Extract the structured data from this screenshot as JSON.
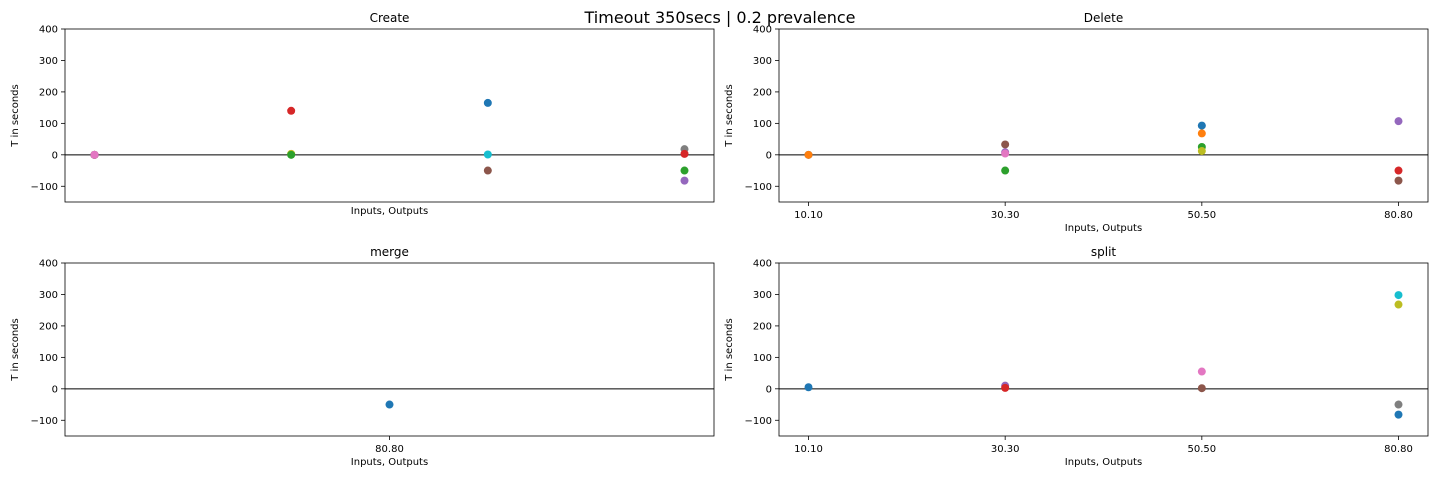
{
  "suptitle": "Timeout 350secs | 0.2 prevalence",
  "chart_data": [
    {
      "id": "create",
      "type": "scatter",
      "title": "Create",
      "xlabel": "Inputs, Outputs",
      "ylabel": "T in seconds",
      "ylim": [
        -150,
        400
      ],
      "yticks": [
        -100,
        0,
        100,
        200,
        300,
        400
      ],
      "xlim": [
        -0.15,
        3.15
      ],
      "xticks": [],
      "hline": 0,
      "points": [
        {
          "x": 0,
          "y": 0,
          "color": "#1f77b4"
        },
        {
          "x": 0,
          "y": 0,
          "color": "#ff7f0e"
        },
        {
          "x": 0,
          "y": 0,
          "color": "#2ca02c"
        },
        {
          "x": 0,
          "y": 0,
          "color": "#d62728"
        },
        {
          "x": 0,
          "y": 0,
          "color": "#9467bd"
        },
        {
          "x": 0,
          "y": 0,
          "color": "#e377c2"
        },
        {
          "x": 1,
          "y": 140,
          "color": "#d62728"
        },
        {
          "x": 1,
          "y": 3,
          "color": "#bcbd22"
        },
        {
          "x": 1,
          "y": 0,
          "color": "#2ca02c"
        },
        {
          "x": 2,
          "y": 165,
          "color": "#1f77b4"
        },
        {
          "x": 2,
          "y": 1,
          "color": "#17becf"
        },
        {
          "x": 2,
          "y": -50,
          "color": "#8c564b"
        },
        {
          "x": 3,
          "y": 18,
          "color": "#7f7f7f"
        },
        {
          "x": 3,
          "y": 3,
          "color": "#d62728"
        },
        {
          "x": 3,
          "y": -50,
          "color": "#2ca02c"
        },
        {
          "x": 3,
          "y": -82,
          "color": "#9467bd"
        }
      ]
    },
    {
      "id": "delete",
      "type": "scatter",
      "title": "Delete",
      "xlabel": "Inputs, Outputs",
      "ylabel": "T in seconds",
      "ylim": [
        -150,
        400
      ],
      "yticks": [
        -100,
        0,
        100,
        200,
        300,
        400
      ],
      "xlim": [
        -0.15,
        3.15
      ],
      "xticks": [
        "10.10",
        "30.30",
        "50.50",
        "80.80"
      ],
      "hline": 0,
      "points": [
        {
          "x": 0,
          "y": 0,
          "color": "#1f77b4"
        },
        {
          "x": 0,
          "y": 0,
          "color": "#ff7f0e"
        },
        {
          "x": 1,
          "y": 33,
          "color": "#8c564b"
        },
        {
          "x": 1,
          "y": 8,
          "color": "#9467bd"
        },
        {
          "x": 1,
          "y": 4,
          "color": "#e377c2"
        },
        {
          "x": 1,
          "y": -50,
          "color": "#2ca02c"
        },
        {
          "x": 2,
          "y": 93,
          "color": "#1f77b4"
        },
        {
          "x": 2,
          "y": 68,
          "color": "#ff7f0e"
        },
        {
          "x": 2,
          "y": 25,
          "color": "#2ca02c"
        },
        {
          "x": 2,
          "y": 12,
          "color": "#bcbd22"
        },
        {
          "x": 3,
          "y": 107,
          "color": "#9467bd"
        },
        {
          "x": 3,
          "y": -50,
          "color": "#d62728"
        },
        {
          "x": 3,
          "y": -82,
          "color": "#8c564b"
        }
      ]
    },
    {
      "id": "merge",
      "type": "scatter",
      "title": "merge",
      "xlabel": "Inputs, Outputs",
      "ylabel": "T in seconds",
      "ylim": [
        -150,
        400
      ],
      "yticks": [
        -100,
        0,
        100,
        200,
        300,
        400
      ],
      "xlim": [
        -0.5,
        0.5
      ],
      "xticks": [
        "80.80"
      ],
      "hline": 0,
      "points": [
        {
          "x": 0,
          "y": -50,
          "color": "#1f77b4"
        }
      ]
    },
    {
      "id": "split",
      "type": "scatter",
      "title": "split",
      "xlabel": "Inputs, Outputs",
      "ylabel": "T in seconds",
      "ylim": [
        -150,
        400
      ],
      "yticks": [
        -100,
        0,
        100,
        200,
        300,
        400
      ],
      "xlim": [
        -0.15,
        3.15
      ],
      "xticks": [
        "10.10",
        "30.30",
        "50.50",
        "80.80"
      ],
      "hline": 0,
      "points": [
        {
          "x": 0,
          "y": 5,
          "color": "#1f77b4"
        },
        {
          "x": 1,
          "y": 10,
          "color": "#9467bd"
        },
        {
          "x": 1,
          "y": 3,
          "color": "#d62728"
        },
        {
          "x": 2,
          "y": 55,
          "color": "#e377c2"
        },
        {
          "x": 2,
          "y": 2,
          "color": "#8c564b"
        },
        {
          "x": 3,
          "y": 298,
          "color": "#17becf"
        },
        {
          "x": 3,
          "y": 268,
          "color": "#bcbd22"
        },
        {
          "x": 3,
          "y": -50,
          "color": "#7f7f7f"
        },
        {
          "x": 3,
          "y": -82,
          "color": "#1f77b4"
        }
      ]
    }
  ]
}
